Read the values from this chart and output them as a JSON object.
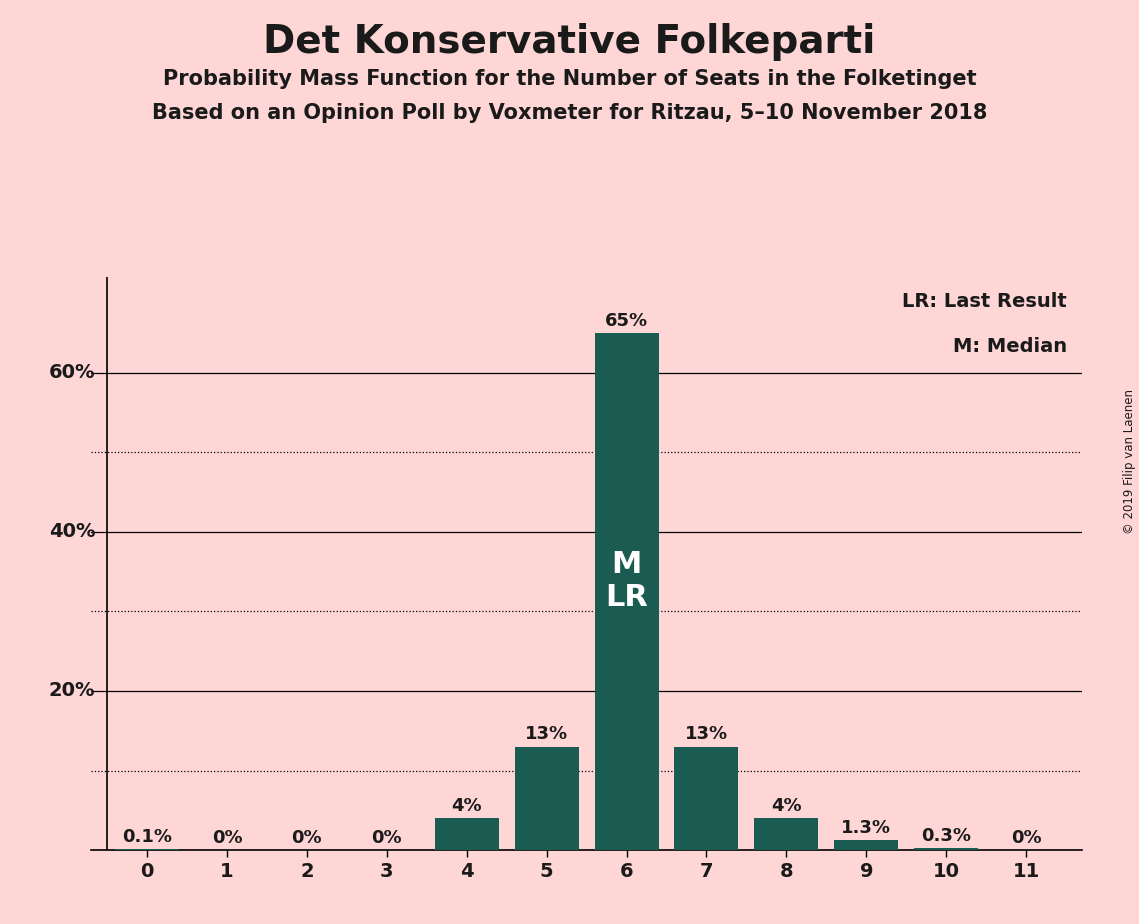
{
  "title": "Det Konservative Folkeparti",
  "subtitle1": "Probability Mass Function for the Number of Seats in the Folketinget",
  "subtitle2": "Based on an Opinion Poll by Voxmeter for Ritzau, 5–10 November 2018",
  "copyright": "© 2019 Filip van Laenen",
  "categories": [
    0,
    1,
    2,
    3,
    4,
    5,
    6,
    7,
    8,
    9,
    10,
    11
  ],
  "values": [
    0.001,
    0.0,
    0.0,
    0.0,
    0.04,
    0.13,
    0.65,
    0.13,
    0.04,
    0.013,
    0.003,
    0.0
  ],
  "labels": [
    "0.1%",
    "0%",
    "0%",
    "0%",
    "4%",
    "13%",
    "65%",
    "13%",
    "4%",
    "1.3%",
    "0.3%",
    "0%"
  ],
  "bar_color": "#1a5c52",
  "background_color": "#ffd6d6",
  "solid_gridlines": [
    0.2,
    0.4,
    0.6
  ],
  "dotted_gridlines": [
    0.1,
    0.3,
    0.5
  ],
  "median_bar": 6,
  "last_result_bar": 6,
  "legend_lr": "LR: Last Result",
  "legend_m": "M: Median",
  "bar_label_inside_text": "M\nLR",
  "ylabels": {
    "20%": 0.2,
    "40%": 0.4,
    "60%": 0.6
  }
}
